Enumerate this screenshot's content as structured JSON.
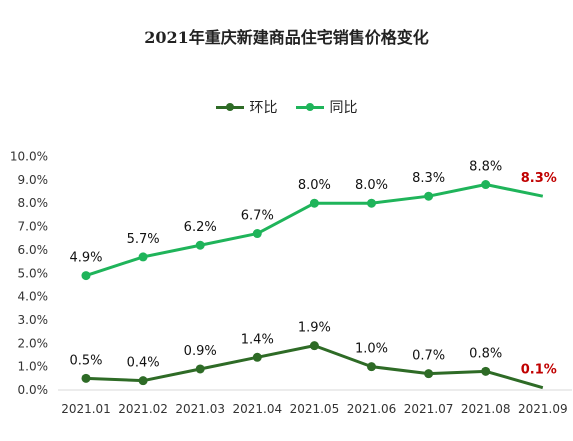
{
  "colors": {
    "mom": "#2e6b26",
    "yoy": "#1fb45a",
    "highlight": "#c00000"
  },
  "chart_data": {
    "type": "line",
    "title": "2021年重庆新建商品住宅销售价格变化",
    "categories": [
      "2021.01",
      "2021.02",
      "2021.03",
      "2021.04",
      "2021.05",
      "2021.06",
      "2021.07",
      "2021.08",
      "2021.09"
    ],
    "y_ticks": [
      "10.0%",
      "9.0%",
      "8.0%",
      "7.0%",
      "6.0%",
      "5.0%",
      "4.0%",
      "3.0%",
      "2.0%",
      "1.0%",
      "0.0%"
    ],
    "ylim": [
      0,
      10
    ],
    "grid": false,
    "legend_position": "top-center",
    "series": [
      {
        "name": "环比",
        "values": [
          0.5,
          0.4,
          0.9,
          1.4,
          1.9,
          1.0,
          0.7,
          0.8,
          0.1
        ],
        "labels": [
          "0.5%",
          "0.4%",
          "0.9%",
          "1.4%",
          "1.9%",
          "1.0%",
          "0.7%",
          "0.8%",
          "0.1%"
        ]
      },
      {
        "name": "同比",
        "values": [
          4.9,
          5.7,
          6.2,
          6.7,
          8.0,
          8.0,
          8.3,
          8.8,
          8.3
        ],
        "labels": [
          "4.9%",
          "5.7%",
          "6.2%",
          "6.7%",
          "8.0%",
          "8.0%",
          "8.3%",
          "8.8%",
          "8.3%"
        ]
      }
    ]
  }
}
